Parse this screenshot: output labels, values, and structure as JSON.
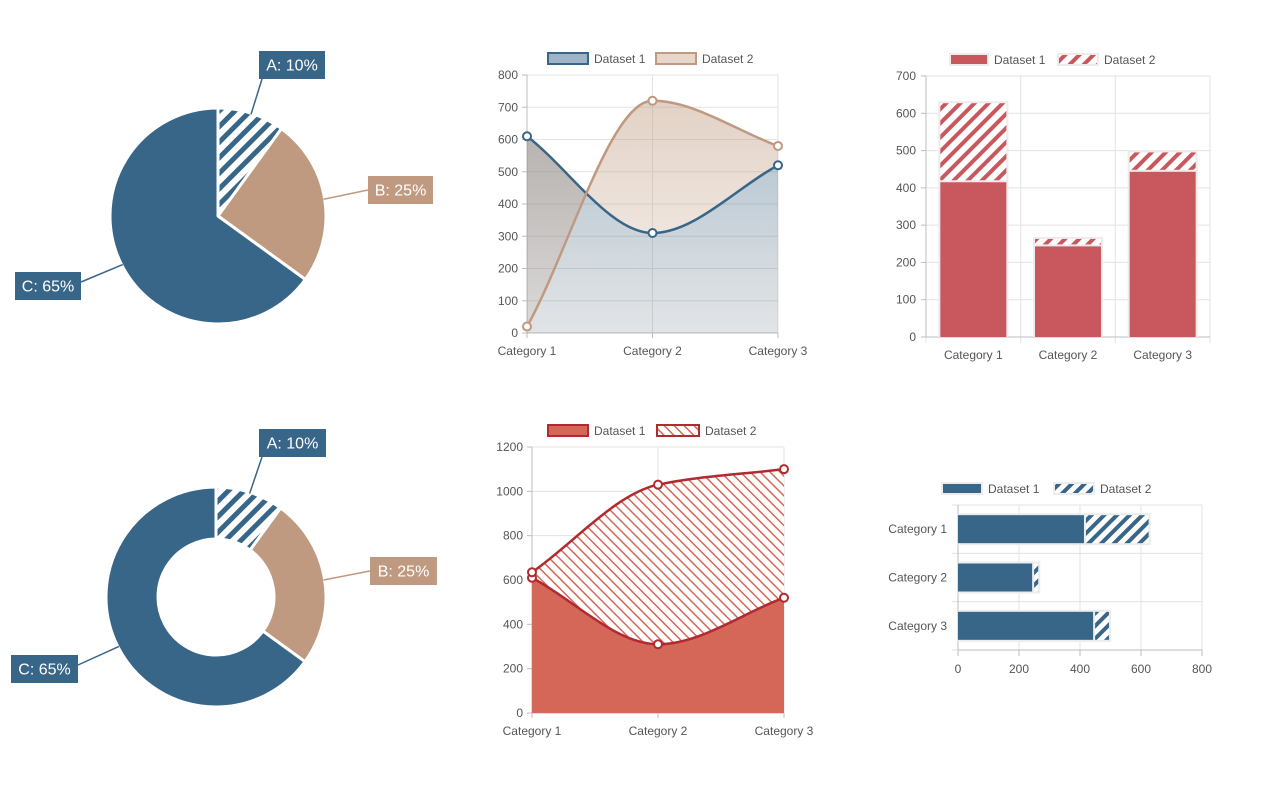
{
  "colors": {
    "blue": "#386688",
    "tan": "#bf9a80",
    "red": "#c9575e",
    "salmon": "#d46758",
    "darkred": "#b02a2f",
    "grid": "#e3e3e3",
    "axis": "#bdbdbd",
    "tick": "#555555"
  },
  "chart_data": [
    {
      "id": "pie",
      "type": "pie",
      "labels": [
        "A",
        "B",
        "C"
      ],
      "values": [
        10,
        25,
        65
      ],
      "slice_labels": [
        "A: 10%",
        "B: 25%",
        "C: 65%"
      ],
      "patterns": [
        "stripes",
        "solid",
        "solid"
      ]
    },
    {
      "id": "area1",
      "type": "area",
      "categories": [
        "Category 1",
        "Category 2",
        "Category 3"
      ],
      "ylim": [
        0,
        800
      ],
      "yticks": [
        0,
        100,
        200,
        300,
        400,
        500,
        600,
        700,
        800
      ],
      "series": [
        {
          "name": "Dataset 1",
          "values": [
            610,
            310,
            520
          ]
        },
        {
          "name": "Dataset 2",
          "values": [
            20,
            720,
            580
          ]
        }
      ],
      "legend": "top"
    },
    {
      "id": "bar1",
      "type": "bar",
      "stacked": true,
      "orientation": "vertical",
      "categories": [
        "Category 1",
        "Category 2",
        "Category 3"
      ],
      "ylim": [
        0,
        700
      ],
      "yticks": [
        0,
        100,
        200,
        300,
        400,
        500,
        600,
        700
      ],
      "series": [
        {
          "name": "Dataset 1",
          "values": [
            415,
            243,
            443
          ]
        },
        {
          "name": "Dataset 2",
          "values": [
            212,
            20,
            52
          ]
        }
      ],
      "legend": "top"
    },
    {
      "id": "donut",
      "type": "pie",
      "variant": "doughnut",
      "labels": [
        "A",
        "B",
        "C"
      ],
      "values": [
        10,
        25,
        65
      ],
      "slice_labels": [
        "A: 10%",
        "B: 25%",
        "C: 65%"
      ],
      "patterns": [
        "stripes",
        "solid",
        "solid"
      ]
    },
    {
      "id": "area2",
      "type": "area",
      "categories": [
        "Category 1",
        "Category 2",
        "Category 3"
      ],
      "ylim": [
        0,
        1200
      ],
      "yticks": [
        0,
        200,
        400,
        600,
        800,
        1000,
        1200
      ],
      "series": [
        {
          "name": "Dataset 1",
          "values": [
            610,
            310,
            520
          ]
        },
        {
          "name": "Dataset 2",
          "values": [
            635,
            1030,
            1100
          ]
        }
      ],
      "legend": "top"
    },
    {
      "id": "bar2",
      "type": "bar",
      "stacked": true,
      "orientation": "horizontal",
      "categories": [
        "Category 1",
        "Category 2",
        "Category 3"
      ],
      "xlim": [
        0,
        800
      ],
      "xticks": [
        0,
        200,
        400,
        600,
        800
      ],
      "series": [
        {
          "name": "Dataset 1",
          "values": [
            413,
            243,
            443
          ]
        },
        {
          "name": "Dataset 2",
          "values": [
            212,
            20,
            52
          ]
        }
      ],
      "legend": "top"
    }
  ]
}
